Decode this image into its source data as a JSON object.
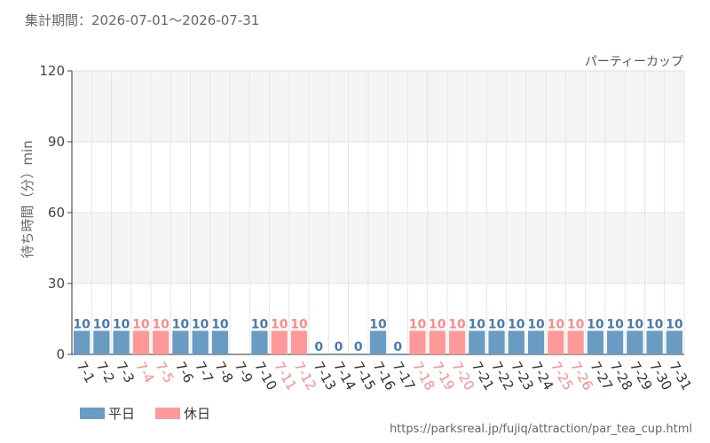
{
  "header": {
    "period": "集計期間：2026-07-01～2026-07-31"
  },
  "chart_data": {
    "type": "bar",
    "title": "パーティーカップ",
    "ylabel": "待ち時間（分）min",
    "xlabel": "",
    "ylim": [
      0,
      120
    ],
    "yticks": [
      0,
      30,
      60,
      90,
      120
    ],
    "categories": [
      "7-1",
      "7-2",
      "7-3",
      "7-4",
      "7-5",
      "7-6",
      "7-7",
      "7-8",
      "7-9",
      "7-10",
      "7-11",
      "7-12",
      "7-13",
      "7-14",
      "7-15",
      "7-16",
      "7-17",
      "7-18",
      "7-19",
      "7-20",
      "7-21",
      "7-22",
      "7-23",
      "7-24",
      "7-25",
      "7-26",
      "7-27",
      "7-28",
      "7-29",
      "7-30",
      "7-31"
    ],
    "values": [
      10,
      10,
      10,
      10,
      10,
      10,
      10,
      10,
      null,
      10,
      10,
      10,
      0,
      0,
      0,
      10,
      0,
      10,
      10,
      10,
      10,
      10,
      10,
      10,
      10,
      10,
      10,
      10,
      10,
      10,
      10
    ],
    "day_type": [
      "weekday",
      "weekday",
      "weekday",
      "holiday",
      "holiday",
      "weekday",
      "weekday",
      "weekday",
      "weekday",
      "weekday",
      "holiday",
      "holiday",
      "weekday",
      "weekday",
      "weekday",
      "weekday",
      "weekday",
      "holiday",
      "holiday",
      "holiday",
      "weekday",
      "weekday",
      "weekday",
      "weekday",
      "holiday",
      "holiday",
      "weekday",
      "weekday",
      "weekday",
      "weekday",
      "weekday"
    ],
    "legend": [
      {
        "key": "weekday",
        "label": "平日",
        "color": "#6a9bc3"
      },
      {
        "key": "holiday",
        "label": "休日",
        "color": "#ff9999"
      }
    ],
    "legend_position": "bottom-left",
    "grid": true,
    "colors": {
      "weekday_bar": "#6a9bc3",
      "holiday_bar": "#ff9999",
      "weekday_label": "#4a7bab",
      "holiday_label": "#ff8a8a",
      "band": "#f5f5f5"
    }
  },
  "footer": {
    "url": "https://parksreal.jp/fujiq/attraction/par_tea_cup.html"
  }
}
